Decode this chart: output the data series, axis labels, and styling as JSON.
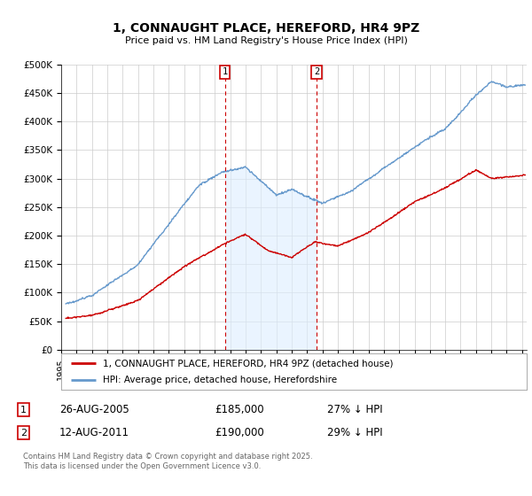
{
  "title": "1, CONNAUGHT PLACE, HEREFORD, HR4 9PZ",
  "subtitle": "Price paid vs. HM Land Registry's House Price Index (HPI)",
  "ylabel_ticks": [
    "£0",
    "£50K",
    "£100K",
    "£150K",
    "£200K",
    "£250K",
    "£300K",
    "£350K",
    "£400K",
    "£450K",
    "£500K"
  ],
  "ytick_values": [
    0,
    50000,
    100000,
    150000,
    200000,
    250000,
    300000,
    350000,
    400000,
    450000,
    500000
  ],
  "ylim": [
    0,
    500000
  ],
  "xlim_start": 1995.3,
  "xlim_end": 2025.3,
  "legend_line1": "1, CONNAUGHT PLACE, HEREFORD, HR4 9PZ (detached house)",
  "legend_line2": "HPI: Average price, detached house, Herefordshire",
  "legend_color1": "#cc0000",
  "legend_color2": "#6699cc",
  "transaction1_label": "1",
  "transaction1_date": "26-AUG-2005",
  "transaction1_price": "£185,000",
  "transaction1_hpi": "27% ↓ HPI",
  "transaction1_year": 2005.65,
  "transaction1_value": 185000,
  "transaction2_label": "2",
  "transaction2_date": "12-AUG-2011",
  "transaction2_price": "£190,000",
  "transaction2_hpi": "29% ↓ HPI",
  "transaction2_year": 2011.62,
  "transaction2_value": 190000,
  "footnote": "Contains HM Land Registry data © Crown copyright and database right 2025.\nThis data is licensed under the Open Government Licence v3.0.",
  "background_color": "#ffffff",
  "plot_bg_color": "#ffffff",
  "grid_color": "#cccccc",
  "vline_color": "#cc0000",
  "fill_color": "#ddeeff",
  "fill_alpha": 0.6
}
